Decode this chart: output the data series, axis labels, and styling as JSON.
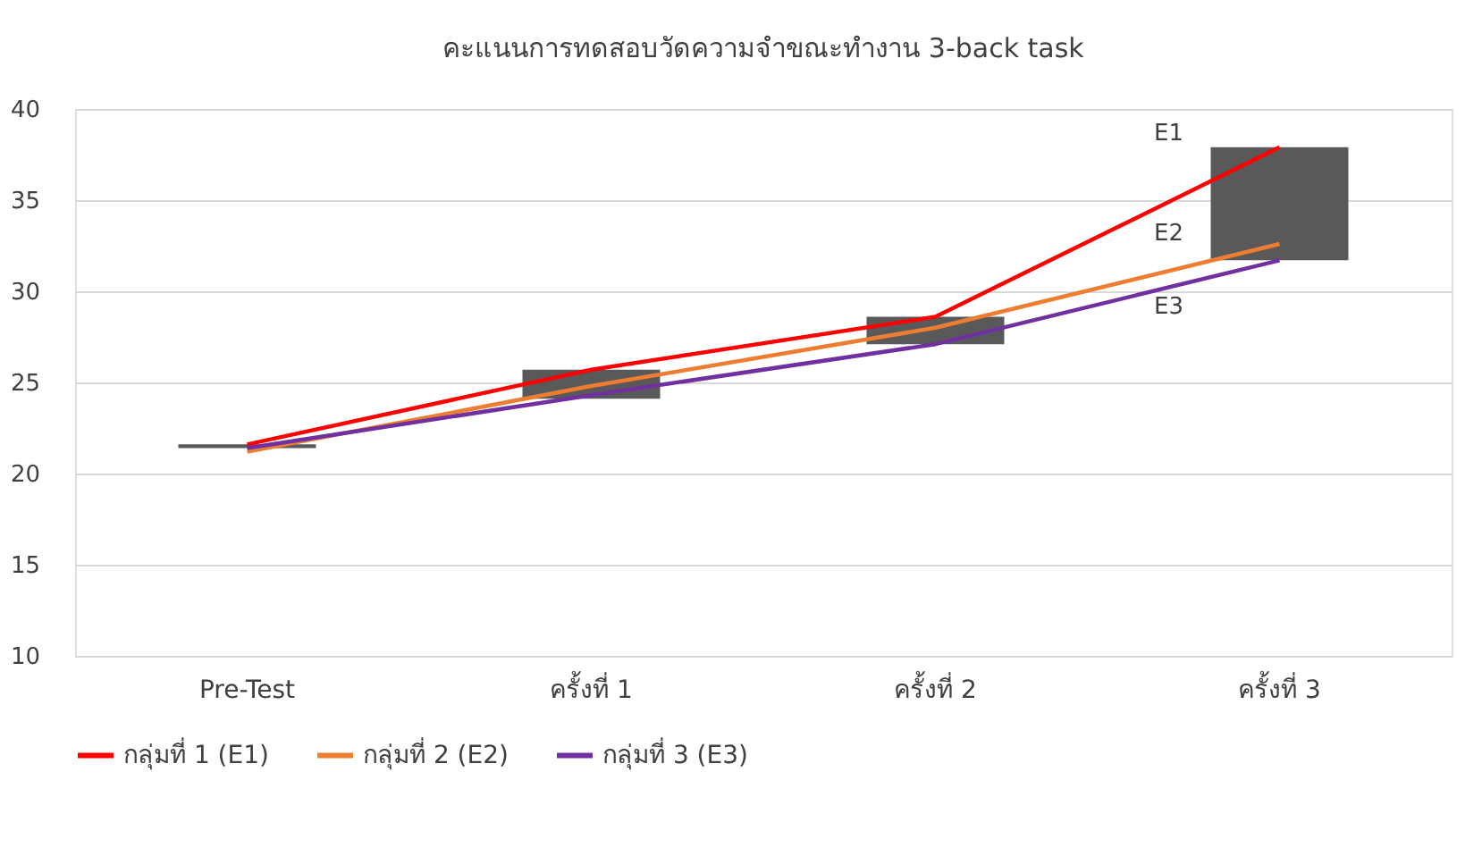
{
  "chart_data": {
    "type": "line",
    "title": "คะแนนการทดสอบวัดความจำขณะทำงาน 3-back task",
    "categories": [
      "Pre-Test",
      "ครั้งที่ 1",
      "ครั้งที่ 2",
      "ครั้งที่ 3"
    ],
    "series": [
      {
        "type": "bar",
        "color": "#595959",
        "base": [
          21.4,
          24.1,
          27.1,
          31.7
        ],
        "values": [
          0.2,
          1.6,
          1.5,
          6.2
        ]
      },
      {
        "name": "กลุ่มที่ 1 (E1)",
        "color": "#ff0000",
        "values": [
          21.6,
          25.7,
          28.6,
          37.9
        ]
      },
      {
        "name": "กลุ่มที่ 2 (E2)",
        "color": "#ed7d31",
        "values": [
          21.2,
          24.8,
          28.0,
          32.6
        ]
      },
      {
        "name": "กลุ่มที่ 3 (E3)",
        "color": "#7030a0",
        "values": [
          21.4,
          24.3,
          27.1,
          31.7
        ]
      }
    ],
    "annotations": [
      "E1",
      "E2",
      "E3"
    ],
    "ylim": [
      10,
      40
    ],
    "yticks": [
      10,
      15,
      20,
      25,
      30,
      35,
      40
    ],
    "grid": "y",
    "legend": "bottom",
    "marker": "none",
    "line_style": "solid"
  }
}
